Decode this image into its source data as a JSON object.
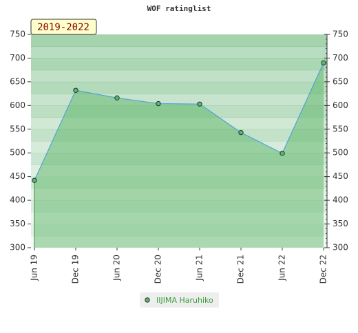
{
  "chart_data": {
    "type": "line",
    "title": "WOF ratinglist",
    "annotation": "2019-2022",
    "categories": [
      "Jun 19",
      "Dec 19",
      "Jun 20",
      "Dec 20",
      "Jun 21",
      "Dec 21",
      "Jun 22",
      "Dec 22"
    ],
    "series": [
      {
        "name": "IIJIMA Haruhiko",
        "color": "#5cb85c",
        "line_color": "#4fa3d6",
        "values": [
          442,
          632,
          616,
          604,
          603,
          543,
          499,
          690
        ]
      }
    ],
    "ylim": [
      300,
      750
    ],
    "yticks": [
      300,
      350,
      400,
      450,
      500,
      550,
      600,
      650,
      700,
      750
    ],
    "y2lim": [
      300,
      750
    ],
    "y2ticks": [
      300,
      350,
      400,
      450,
      500,
      550,
      600,
      650,
      700,
      750
    ],
    "legend": "bottom"
  }
}
